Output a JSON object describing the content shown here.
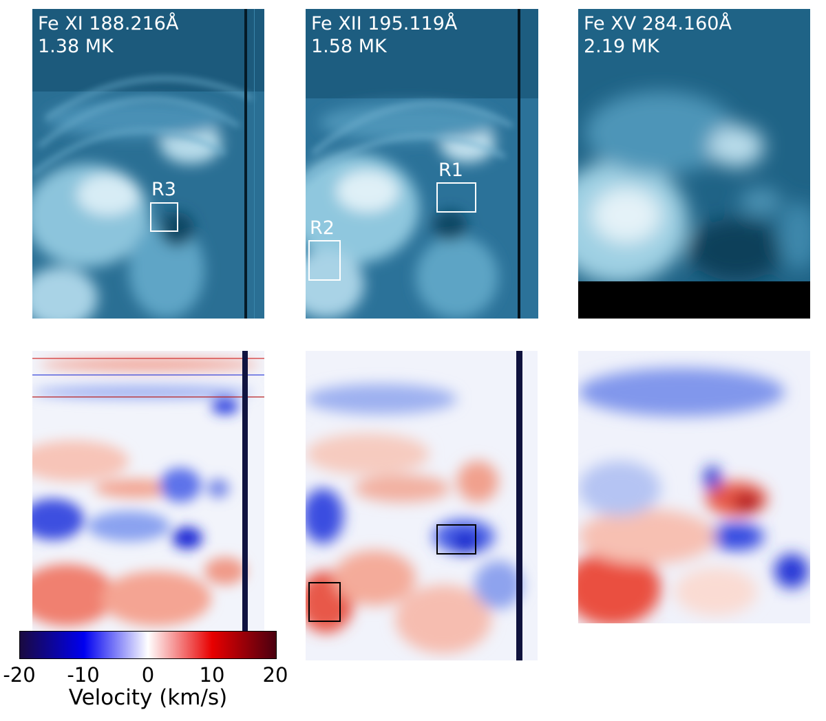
{
  "intensity_panels": [
    {
      "line": "Fe XI 188.216Å",
      "temperature": "1.38 MK"
    },
    {
      "line": "Fe XII 195.119Å",
      "temperature": "1.58 MK"
    },
    {
      "line": "Fe XV 284.160Å",
      "temperature": "2.19 MK"
    }
  ],
  "regions": [
    "R3",
    "R1",
    "R2"
  ],
  "colorbar": {
    "label": "Velocity (km/s)",
    "ticks": [
      "-20",
      "-10",
      "0",
      "10",
      "20"
    ],
    "colors": [
      "#1a0a40",
      "#0000f0",
      "#ffffff",
      "#e80000",
      "#4a0010"
    ]
  },
  "colors": {
    "intensity_dark": "#0d3c55",
    "intensity_mid": "#2f7fa6",
    "intensity_bright": "#dcedf5"
  }
}
